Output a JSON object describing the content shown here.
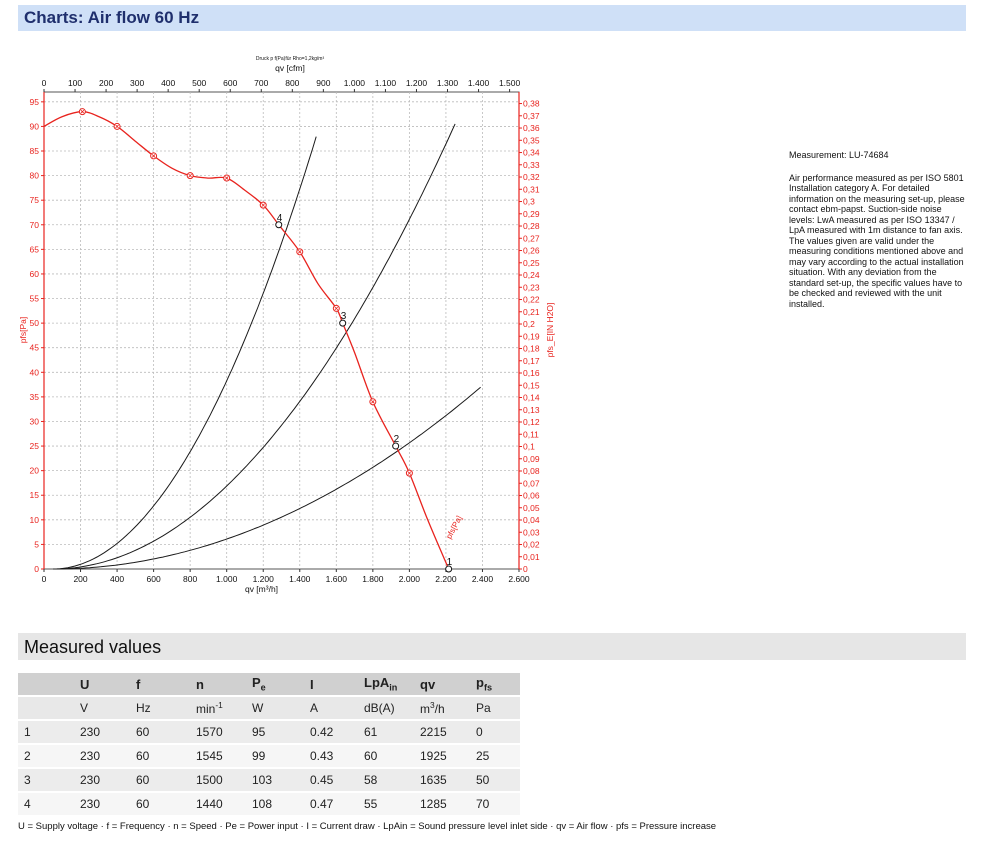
{
  "page_title": "Charts: Air flow 60 Hz",
  "measurement_id": "Measurement: LU-74684",
  "description": "Air performance measured as per ISO 5801 Installation category A. For detailed information on the measuring set-up, please contact ebm-papst. Suction-side noise levels: LwA measured as per ISO 13347 / LpA measured with 1m distance to fan axis. The values given are valid under the measuring conditions mentioned above and may vary according to the actual installation situation. With any deviation from the standard set-up, the specific values have to be checked and reviewed with the unit installed.",
  "colors": {
    "curve": "#e8231e",
    "system_lines": "#1a1a1a",
    "grid": "#bbbbbb",
    "title_bar": "#cfe0f7"
  },
  "chart_data": {
    "type": "line",
    "top_note": "Druck p f(Pa)für Rho=1,2kg/m³",
    "xlabel": "qv [m³/h]",
    "xlabel_top": "qv [cfm]",
    "ylabel": "pfs[Pa]",
    "ylabel_right": "pfs_E[IN H2O]",
    "curve_label": "pfs[Pa]",
    "xlim": [
      0,
      2600
    ],
    "ylim": [
      0,
      97
    ],
    "x_ticks": [
      "0",
      "200",
      "400",
      "600",
      "800",
      "1.000",
      "1.200",
      "1.400",
      "1.600",
      "1.800",
      "2.000",
      "2.200",
      "2.400",
      "2.600"
    ],
    "x_top_ticks": [
      "0",
      "100",
      "200",
      "300",
      "400",
      "500",
      "600",
      "700",
      "800",
      "900",
      "1.000",
      "1.100",
      "1.200",
      "1.300",
      "1.400",
      "1.500"
    ],
    "y_ticks": [
      "0",
      "5",
      "10",
      "15",
      "20",
      "25",
      "30",
      "35",
      "40",
      "45",
      "50",
      "55",
      "60",
      "65",
      "70",
      "75",
      "80",
      "85",
      "90",
      "95"
    ],
    "y_right_ticks": [
      "0",
      "0,01",
      "0,02",
      "0,03",
      "0,04",
      "0,05",
      "0,06",
      "0,07",
      "0,08",
      "0,09",
      "0,1",
      "0,11",
      "0,12",
      "0,13",
      "0,14",
      "0,15",
      "0,16",
      "0,17",
      "0,18",
      "0,19",
      "0,2",
      "0,21",
      "0,22",
      "0,23",
      "0,24",
      "0,25",
      "0,26",
      "0,27",
      "0,28",
      "0,29",
      "0,3",
      "0,31",
      "0,32",
      "0,33",
      "0,34",
      "0,35",
      "0,36",
      "0,37",
      "0,38"
    ],
    "fan_curve": {
      "name": "pfs[Pa]",
      "x": [
        0,
        100,
        210,
        300,
        400,
        500,
        600,
        700,
        800,
        900,
        1000,
        1100,
        1200,
        1285,
        1400,
        1500,
        1600,
        1635,
        1700,
        1800,
        1925,
        2000,
        2100,
        2215
      ],
      "y": [
        90,
        92,
        93,
        92,
        90,
        87,
        84,
        81.5,
        80,
        79.5,
        79.5,
        77,
        74,
        70,
        64.5,
        58,
        53,
        50,
        44,
        34,
        25,
        19.5,
        10,
        0
      ]
    },
    "markers": {
      "x": [
        210,
        400,
        600,
        800,
        1000,
        1200,
        1400,
        1600,
        1800,
        2000
      ],
      "y": [
        93,
        90,
        84,
        80,
        79.5,
        74,
        64.5,
        53,
        34,
        19.5
      ]
    },
    "operating_points": [
      {
        "label": "1",
        "x": 2215,
        "y": 0
      },
      {
        "label": "2",
        "x": 1925,
        "y": 25
      },
      {
        "label": "3",
        "x": 1635,
        "y": 50
      },
      {
        "label": "4",
        "x": 1285,
        "y": 70
      }
    ],
    "system_curves": [
      {
        "k": 4.24e-05,
        "x_max": 1500
      },
      {
        "k": 1.87e-05,
        "x_max": 2250
      },
      {
        "k": 6.75e-06,
        "x_max": 2400
      }
    ]
  },
  "measured": {
    "section_title": "Measured values",
    "headers": [
      {
        "main": "",
        "sub": ""
      },
      {
        "main": "U",
        "sub": ""
      },
      {
        "main": "f",
        "sub": ""
      },
      {
        "main": "n",
        "sub": ""
      },
      {
        "main": "P",
        "sub": "e"
      },
      {
        "main": "I",
        "sub": ""
      },
      {
        "main": "LpA",
        "sub": "in"
      },
      {
        "main": "qv",
        "sub": ""
      },
      {
        "main": "p",
        "sub": "fs"
      }
    ],
    "units": [
      "",
      "V",
      "Hz",
      "min-1",
      "W",
      "A",
      "dB(A)",
      "m3/h",
      "Pa"
    ],
    "rows": [
      [
        "1",
        "230",
        "60",
        "1570",
        "95",
        "0.42",
        "61",
        "2215",
        "0"
      ],
      [
        "2",
        "230",
        "60",
        "1545",
        "99",
        "0.43",
        "60",
        "1925",
        "25"
      ],
      [
        "3",
        "230",
        "60",
        "1500",
        "103",
        "0.45",
        "58",
        "1635",
        "50"
      ],
      [
        "4",
        "230",
        "60",
        "1440",
        "108",
        "0.47",
        "55",
        "1285",
        "70"
      ]
    ],
    "legend": "U = Supply voltage · f = Frequency · n = Speed · Pe = Power input · I = Current draw · LpAin = Sound pressure level inlet side · qv = Air flow · pfs = Pressure increase"
  }
}
